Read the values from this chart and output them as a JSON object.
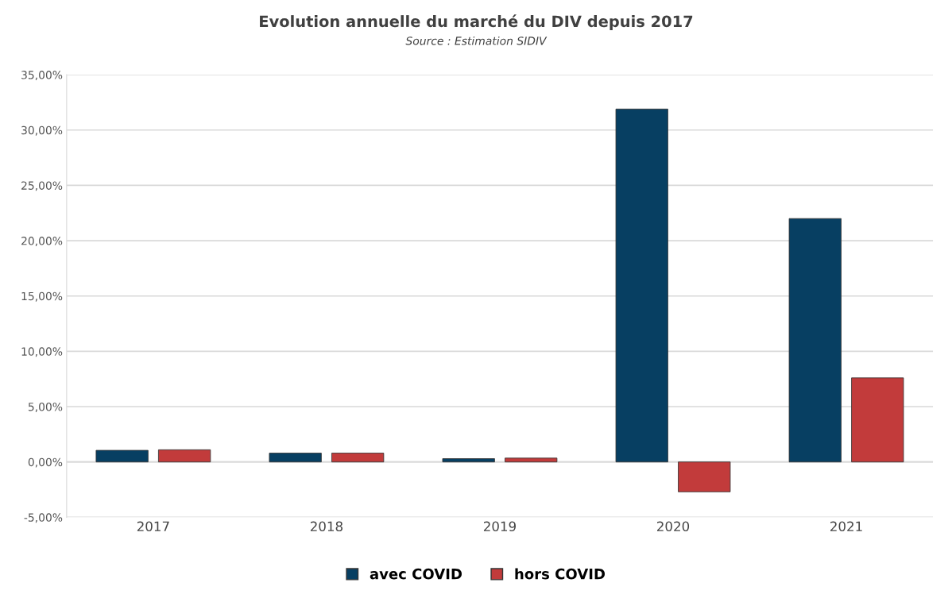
{
  "chart_data": {
    "type": "bar",
    "title": "Evolution annuelle du marché du DIV depuis 2017",
    "subtitle": "Source : Estimation SIDIV",
    "categories": [
      "2017",
      "2018",
      "2019",
      "2020",
      "2021"
    ],
    "series": [
      {
        "name": "avec COVID",
        "color": "#073f62",
        "values": [
          1.05,
          0.8,
          0.3,
          31.9,
          22.0
        ]
      },
      {
        "name": "hors COVID",
        "color": "#c23b3b",
        "values": [
          1.1,
          0.8,
          0.35,
          -2.7,
          7.6
        ]
      }
    ],
    "ylim": [
      -5,
      35
    ],
    "yticks": [
      {
        "value": -5,
        "label": "-5,00%"
      },
      {
        "value": 0,
        "label": "0,00%"
      },
      {
        "value": 5,
        "label": "5,00%"
      },
      {
        "value": 10,
        "label": "10,00%"
      },
      {
        "value": 15,
        "label": "15,00%"
      },
      {
        "value": 20,
        "label": "20,00%"
      },
      {
        "value": 25,
        "label": "25,00%"
      },
      {
        "value": 30,
        "label": "30,00%"
      },
      {
        "value": 35,
        "label": "35,00%"
      }
    ],
    "grid": "y",
    "legend": "bottom"
  }
}
